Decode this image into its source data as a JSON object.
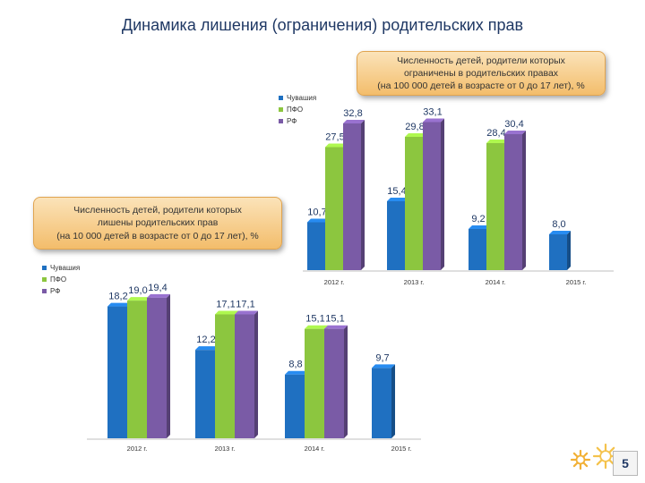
{
  "title": "Динамика лишения (ограничения) родительских прав",
  "page_number": "5",
  "colors": {
    "chuvashia": "#1f70c1",
    "pfo": "#8cc63f",
    "rf": "#7a5ba6",
    "callout": "#f3bd6b"
  },
  "chart_data": [
    {
      "type": "bar",
      "id": "restricted",
      "title_lines": [
        "Численность детей, родители которых",
        "ограничены в родительских правах",
        "(на 100 000 детей в возрасте от 0 до 17 лет), %"
      ],
      "categories": [
        "2012 г.",
        "2013 г.",
        "2014 г.",
        "2015 г."
      ],
      "series": [
        {
          "name": "Чувашия",
          "values": [
            10.7,
            15.4,
            9.2,
            8.0
          ],
          "labels": [
            "10,7",
            "15,4",
            "9,2",
            "8,0"
          ]
        },
        {
          "name": "ПФО",
          "values": [
            27.5,
            29.8,
            28.4,
            null
          ],
          "labels": [
            "27,5",
            "29,8",
            "28,4",
            ""
          ]
        },
        {
          "name": "РФ",
          "values": [
            32.8,
            33.1,
            30.4,
            null
          ],
          "labels": [
            "32,8",
            "33,1",
            "30,4",
            ""
          ]
        }
      ],
      "legend_position": "top-left",
      "grid": false
    },
    {
      "type": "bar",
      "id": "deprived",
      "title_lines": [
        "Численность детей, родители которых",
        "лишены родительских прав",
        "(на 10 000 детей в возрасте от 0 до 17 лет), %"
      ],
      "categories": [
        "2012 г.",
        "2013 г.",
        "2014 г.",
        "2015 г."
      ],
      "series": [
        {
          "name": "Чувашия",
          "values": [
            18.2,
            12.2,
            8.8,
            9.7
          ],
          "labels": [
            "18,2",
            "12,2",
            "8,8",
            "9,7"
          ]
        },
        {
          "name": "ПФО",
          "values": [
            19.0,
            17.1,
            15.1,
            null
          ],
          "labels": [
            "19,0",
            "17,1",
            "15,1",
            ""
          ]
        },
        {
          "name": "РФ",
          "values": [
            19.4,
            17.1,
            15.1,
            null
          ],
          "labels": [
            "19,4",
            "17,1",
            "15,1",
            ""
          ]
        }
      ],
      "legend_position": "top-left",
      "grid": false
    }
  ]
}
